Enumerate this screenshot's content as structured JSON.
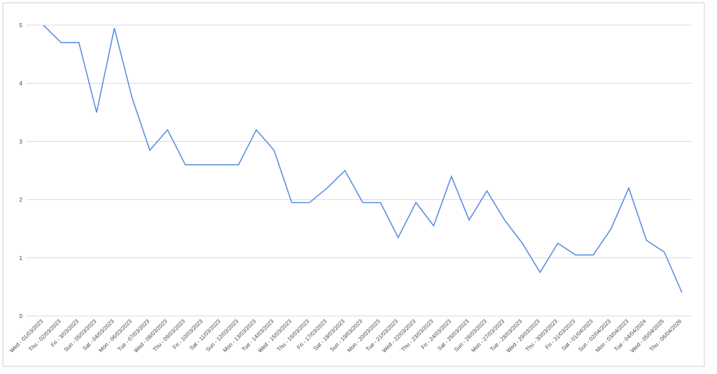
{
  "chart_data": {
    "type": "line",
    "categories": [
      "Wed - 01/03/2023",
      "Thu - 02/03/2023",
      "Fri - 3/03/2023",
      "Sun - 05/03/2023",
      "Sat - 04/03/2023",
      "Mon - 06/03/2023",
      "Tue - 07/03/2023",
      "Wed - 08/03/2023",
      "Thu - 09/03/2023",
      "Fri - 10/03/2023",
      "Sat - 11/03/2023",
      "Sun - 12/03/2023",
      "Mon - 13/03/2023",
      "Tue - 14/03/2023",
      "Wed - 15/03/2023",
      "Thu - 16/03/2023",
      "Fri - 17/03/2023",
      "Sat - 18/03/2023",
      "Sun - 19/03/2023",
      "Mon - 20/03/2023",
      "Tue - 21/03/2023",
      "Wed - 22/03/2023",
      "Thu - 23/03/2023",
      "Fri - 24/03/2023",
      "Sat - 25/03/2023",
      "Sun - 26/03/2023",
      "Mon - 27/03/2023",
      "Tue - 28/03/2023",
      "Wed - 29/03/2023",
      "Thu - 30/03/2023",
      "Fri - 31/03/2023",
      "Sat - 01/04/2023",
      "Sun - 02/04/2023",
      "Mon - 03/04/2023",
      "Tue - 04/04/2024",
      "Wed - 05/04/2025",
      "Thu - 06/04/2026"
    ],
    "values": [
      5.0,
      4.7,
      4.7,
      3.5,
      4.95,
      3.75,
      2.85,
      3.2,
      2.6,
      2.6,
      2.6,
      2.6,
      3.2,
      2.85,
      1.95,
      1.95,
      2.2,
      2.5,
      1.95,
      1.95,
      1.35,
      1.95,
      1.55,
      2.4,
      1.65,
      2.15,
      1.65,
      1.25,
      0.75,
      1.25,
      1.05,
      1.05,
      1.5,
      2.2,
      1.3,
      1.1,
      0.4
    ],
    "color": "#5b8fe0",
    "ylim": [
      0,
      5
    ],
    "yticks": [
      0,
      1,
      2,
      3,
      4,
      5
    ],
    "grid": true
  }
}
